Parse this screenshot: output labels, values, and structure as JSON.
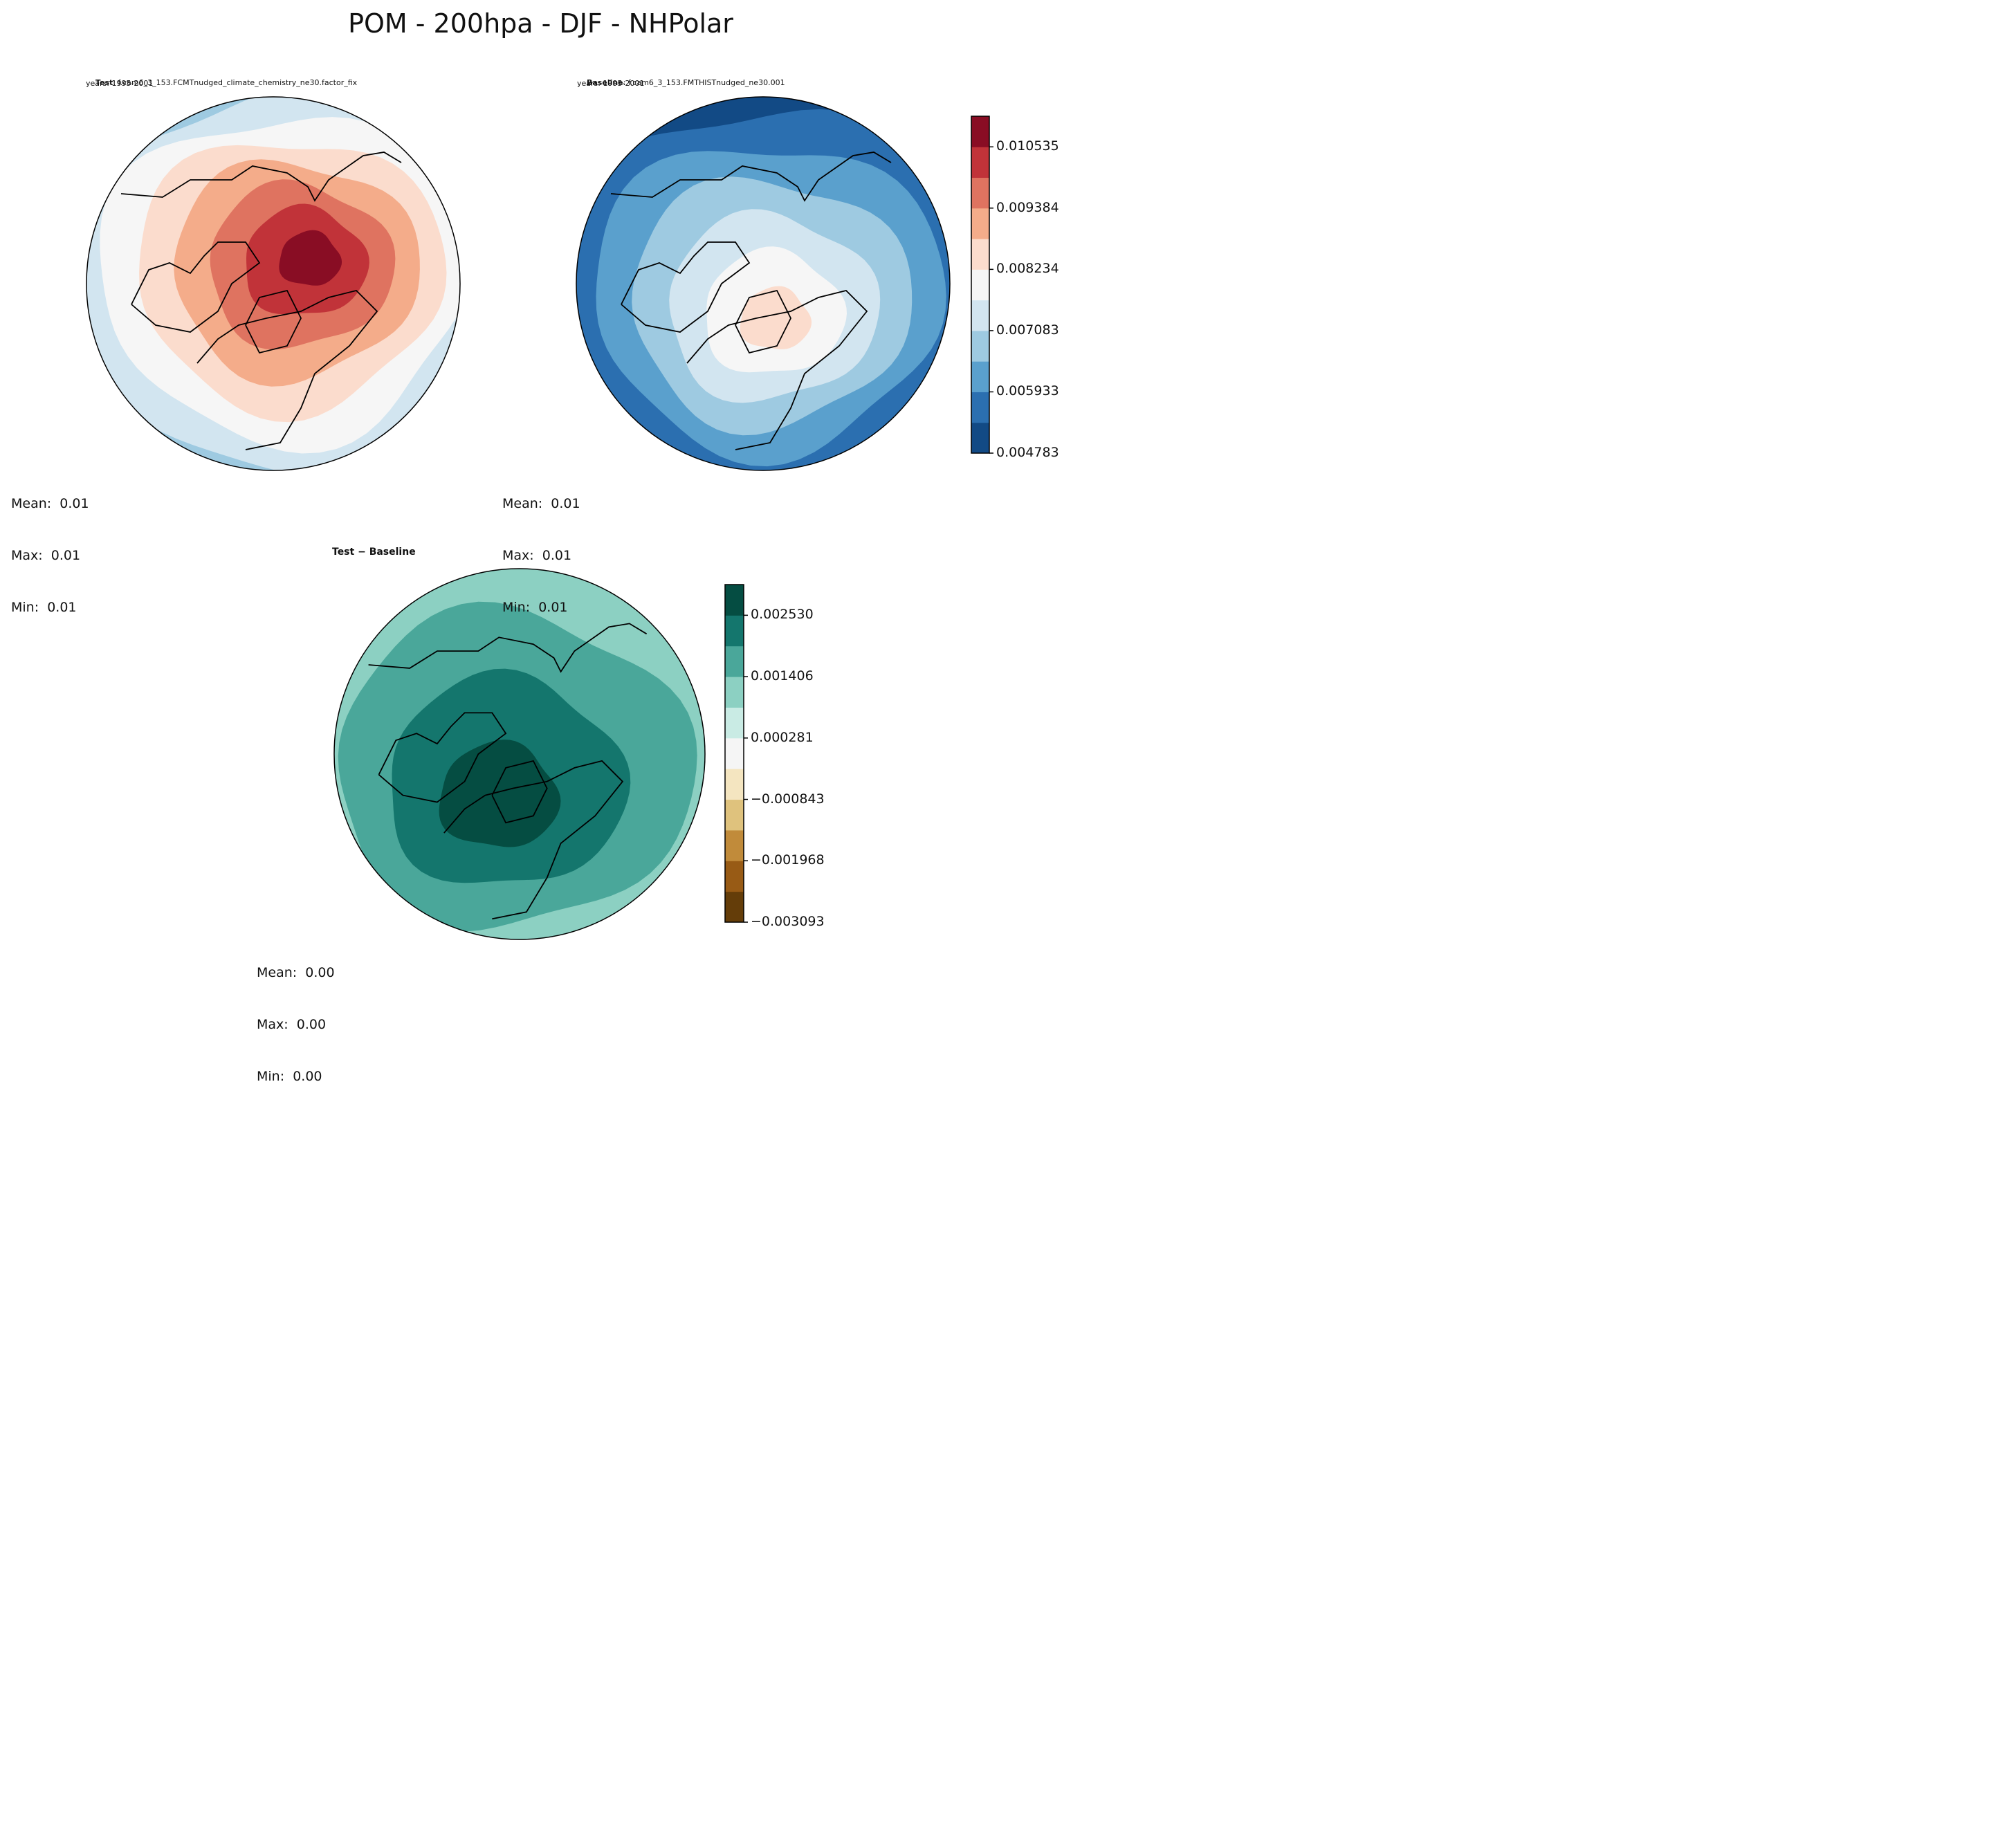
{
  "figure": {
    "title": "POM - 200hpa - DJF - NHPolar"
  },
  "panels": {
    "test": {
      "label": "Test",
      "case": ": f.cam6_3_153.FCMTnudged_climate_chemistry_ne30.factor_fix",
      "years": "years: 1995-2001",
      "mean": "Mean:  0.01",
      "max": "Max:  0.01",
      "min": "Min:  0.01"
    },
    "baseline": {
      "label": "Baseline",
      "case": ": f.cam6_3_153.FMTHISTnudged_ne30.001",
      "years": "years: 1995-2001",
      "mean": "Mean:  0.01",
      "max": "Max:  0.01",
      "min": "Min:  0.01"
    },
    "diff": {
      "label": "Test − Baseline",
      "mean": "Mean:  0.00",
      "max": "Max:  0.00",
      "min": "Min:  0.00"
    }
  },
  "chart_data": [
    {
      "type": "heatmap",
      "name": "Test",
      "projection": "north polar stereographic",
      "colormap": "RdBu_r",
      "levels": [
        0.004783,
        0.005358,
        0.005933,
        0.006508,
        0.007083,
        0.007659,
        0.008234,
        0.008809,
        0.009384,
        0.009959,
        0.010535,
        0.01111
      ],
      "contour_bands_center_to_edge": [
        0.0108,
        0.0102,
        0.0097,
        0.0091,
        0.0085,
        0.0079,
        0.0074,
        0.0068
      ],
      "stats": {
        "mean": 0.01,
        "max": 0.01,
        "min": 0.01
      }
    },
    {
      "type": "heatmap",
      "name": "Baseline",
      "projection": "north polar stereographic",
      "colormap": "RdBu_r",
      "levels": [
        0.004783,
        0.005358,
        0.005933,
        0.006508,
        0.007083,
        0.007659,
        0.008234,
        0.008809,
        0.009384,
        0.009959,
        0.010535,
        0.01111
      ],
      "contour_bands_center_to_edge": [
        0.0085,
        0.0079,
        0.0074,
        0.0068,
        0.0062,
        0.0056,
        0.0051
      ],
      "colorbar_ticks": [
        "0.004783",
        "0.005933",
        "0.007083",
        "0.008234",
        "0.009384",
        "0.010535"
      ],
      "stats": {
        "mean": 0.01,
        "max": 0.01,
        "min": 0.01
      }
    },
    {
      "type": "heatmap",
      "name": "Test − Baseline",
      "projection": "north polar stereographic",
      "colormap": "BrBG",
      "levels": [
        -0.003093,
        -0.002531,
        -0.001968,
        -0.001406,
        -0.000843,
        -0.000281,
        0.000281,
        0.000843,
        0.001406,
        0.001968,
        0.00253,
        0.003093
      ],
      "contour_bands_center_to_edge": [
        0.0028,
        0.0022,
        0.0017,
        0.0011
      ],
      "colorbar_ticks": [
        "−0.003093",
        "−0.001968",
        "−0.000843",
        "0.000281",
        "0.001406",
        "0.002530"
      ],
      "stats": {
        "mean": 0.0,
        "max": 0.0,
        "min": 0.0
      }
    }
  ],
  "colors": {
    "rdbu": [
      "#124a85",
      "#2b6fb0",
      "#5aa0cd",
      "#9ecae1",
      "#d2e5f0",
      "#f6f6f6",
      "#fbdccd",
      "#f4ac8a",
      "#df7360",
      "#c13339",
      "#890d24"
    ],
    "brbg": [
      "#643d09",
      "#985b15",
      "#c18b3a",
      "#dfc27d",
      "#f4e5c0",
      "#f5f5f5",
      "#c9ebe4",
      "#8cd0c2",
      "#4aa79a",
      "#14766d",
      "#054d42"
    ]
  }
}
